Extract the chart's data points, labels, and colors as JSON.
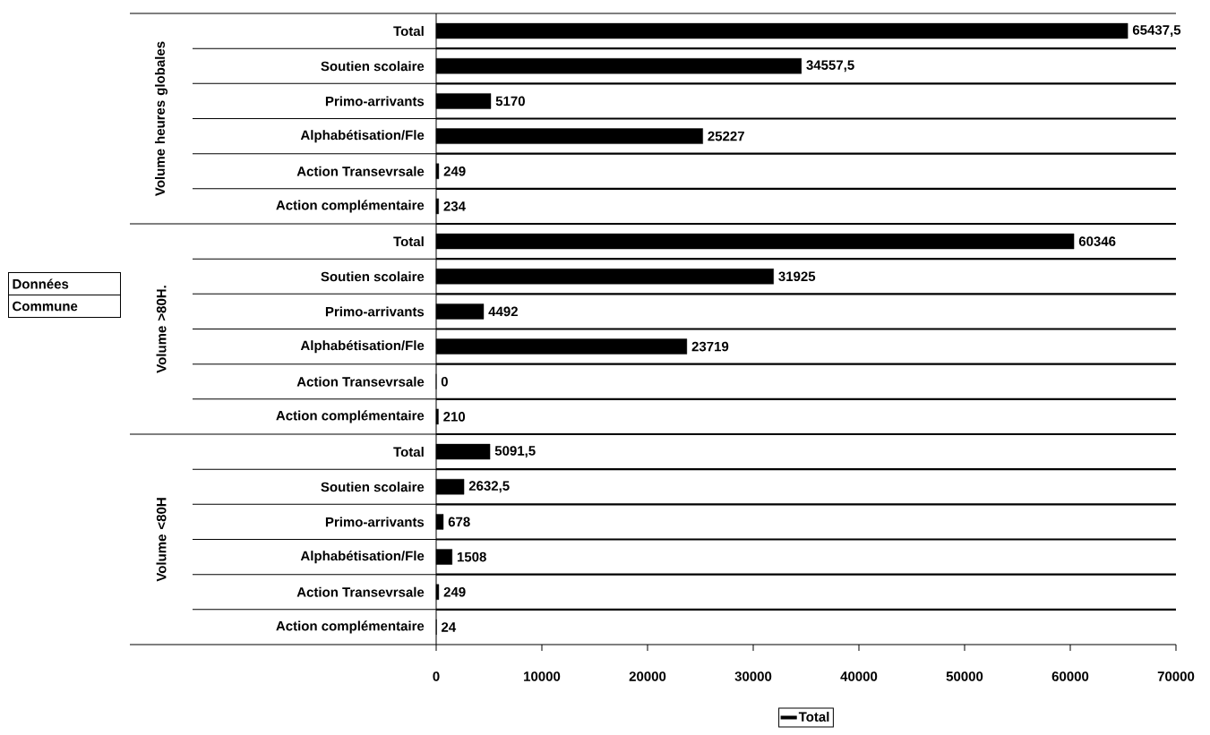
{
  "chart_data": {
    "type": "bar",
    "orientation": "horizontal",
    "categories": [
      "Total",
      "Soutien scolaire",
      "Primo-arrivants",
      "Alphabétisation/Fle",
      "Action Transevrsale",
      "Action complémentaire",
      "Total",
      "Soutien scolaire",
      "Primo-arrivants",
      "Alphabétisation/Fle",
      "Action Transevrsale",
      "Action complémentaire",
      "Total",
      "Soutien scolaire",
      "Primo-arrivants",
      "Alphabétisation/Fle",
      "Action Transevrsale",
      "Action complémentaire"
    ],
    "series": [
      {
        "name": "Total",
        "color": "#000000",
        "values": [
          65437.5,
          34557.5,
          5170,
          25227,
          249,
          234,
          60346,
          31925,
          4492,
          23719,
          0,
          210,
          5091.5,
          2632.5,
          678,
          1508,
          249,
          24
        ],
        "value_labels": [
          "65437,5",
          "34557,5",
          "5170",
          "25227",
          "249",
          "234",
          "60346",
          "31925",
          "4492",
          "23719",
          "0",
          "210",
          "5091,5",
          "2632,5",
          "678",
          "1508",
          "249",
          "24"
        ]
      }
    ],
    "xlim": [
      0,
      70000
    ],
    "xticks": [
      0,
      10000,
      20000,
      30000,
      40000,
      50000,
      60000,
      70000
    ],
    "grid": "y",
    "legend": "bottom",
    "annotations": [
      "Volume heures globales",
      "Volume >80H.",
      "Volume <80H",
      "Données",
      "Commune"
    ]
  }
}
